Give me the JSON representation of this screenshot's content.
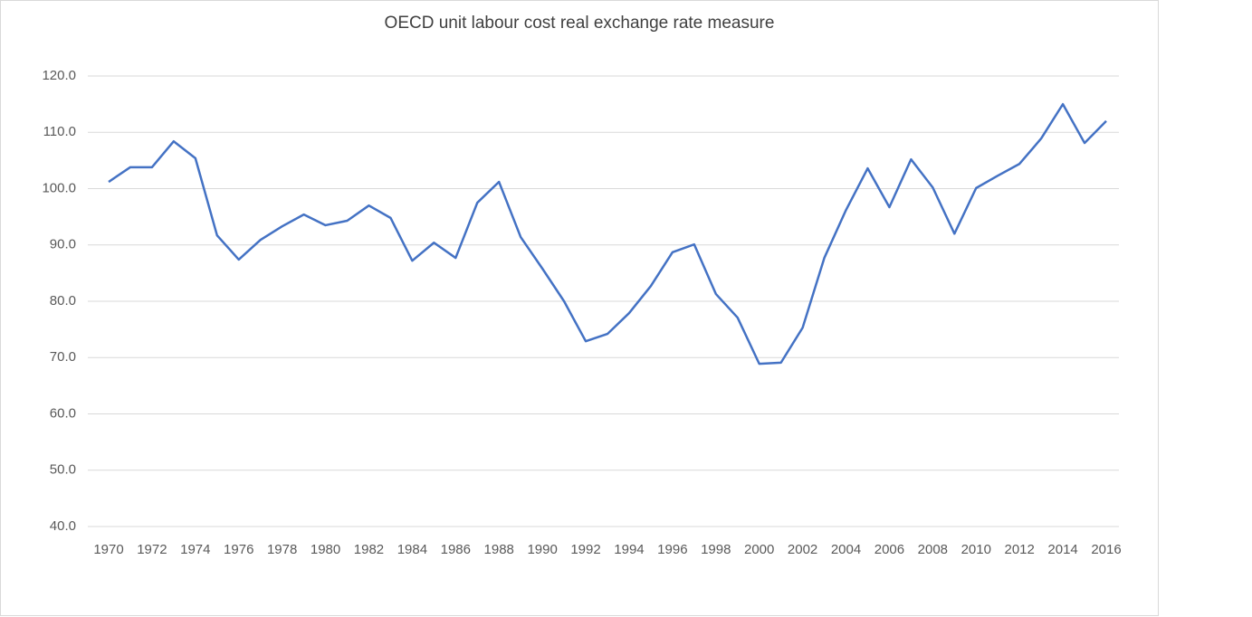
{
  "chart_data": {
    "type": "line",
    "title": "OECD unit labour cost real exchange rate measure",
    "x": [
      1970,
      1971,
      1972,
      1973,
      1974,
      1975,
      1976,
      1977,
      1978,
      1979,
      1980,
      1981,
      1982,
      1983,
      1984,
      1985,
      1986,
      1987,
      1988,
      1989,
      1990,
      1991,
      1992,
      1993,
      1994,
      1995,
      1996,
      1997,
      1998,
      1999,
      2000,
      2001,
      2002,
      2003,
      2004,
      2005,
      2006,
      2007,
      2008,
      2009,
      2010,
      2011,
      2012,
      2013,
      2014,
      2015,
      2016
    ],
    "series": [
      {
        "name": "OECD unit labour cost real exchange rate measure",
        "color": "#4472c4",
        "values": [
          101.2,
          103.8,
          103.8,
          108.4,
          105.4,
          91.7,
          87.4,
          90.9,
          93.3,
          95.4,
          93.5,
          94.3,
          97.0,
          94.8,
          87.2,
          90.4,
          87.7,
          97.5,
          101.2,
          91.4,
          85.8,
          80.0,
          72.9,
          74.2,
          77.9,
          82.7,
          88.7,
          90.1,
          81.3,
          77.1,
          68.9,
          69.1,
          75.3,
          87.7,
          96.2,
          103.6,
          96.7,
          105.2,
          100.2,
          92.0,
          100.1,
          102.3,
          104.4,
          108.9,
          115.0,
          108.1,
          112.0
        ]
      }
    ],
    "xlim": [
      1970,
      2016
    ],
    "xticks": [
      1970,
      1972,
      1974,
      1976,
      1978,
      1980,
      1982,
      1984,
      1986,
      1988,
      1990,
      1992,
      1994,
      1996,
      1998,
      2000,
      2002,
      2004,
      2006,
      2008,
      2010,
      2012,
      2014,
      2016
    ],
    "ylim": [
      40,
      120
    ],
    "yticks": [
      {
        "value": 40,
        "label": "40.0"
      },
      {
        "value": 50,
        "label": "50.0"
      },
      {
        "value": 60,
        "label": "60.0"
      },
      {
        "value": 70,
        "label": "70.0"
      },
      {
        "value": 80,
        "label": "80.0"
      },
      {
        "value": 90,
        "label": "90.0"
      },
      {
        "value": 100,
        "label": "100.0"
      },
      {
        "value": 110,
        "label": "110.0"
      },
      {
        "value": 120,
        "label": "120.0"
      }
    ],
    "grid": true
  }
}
